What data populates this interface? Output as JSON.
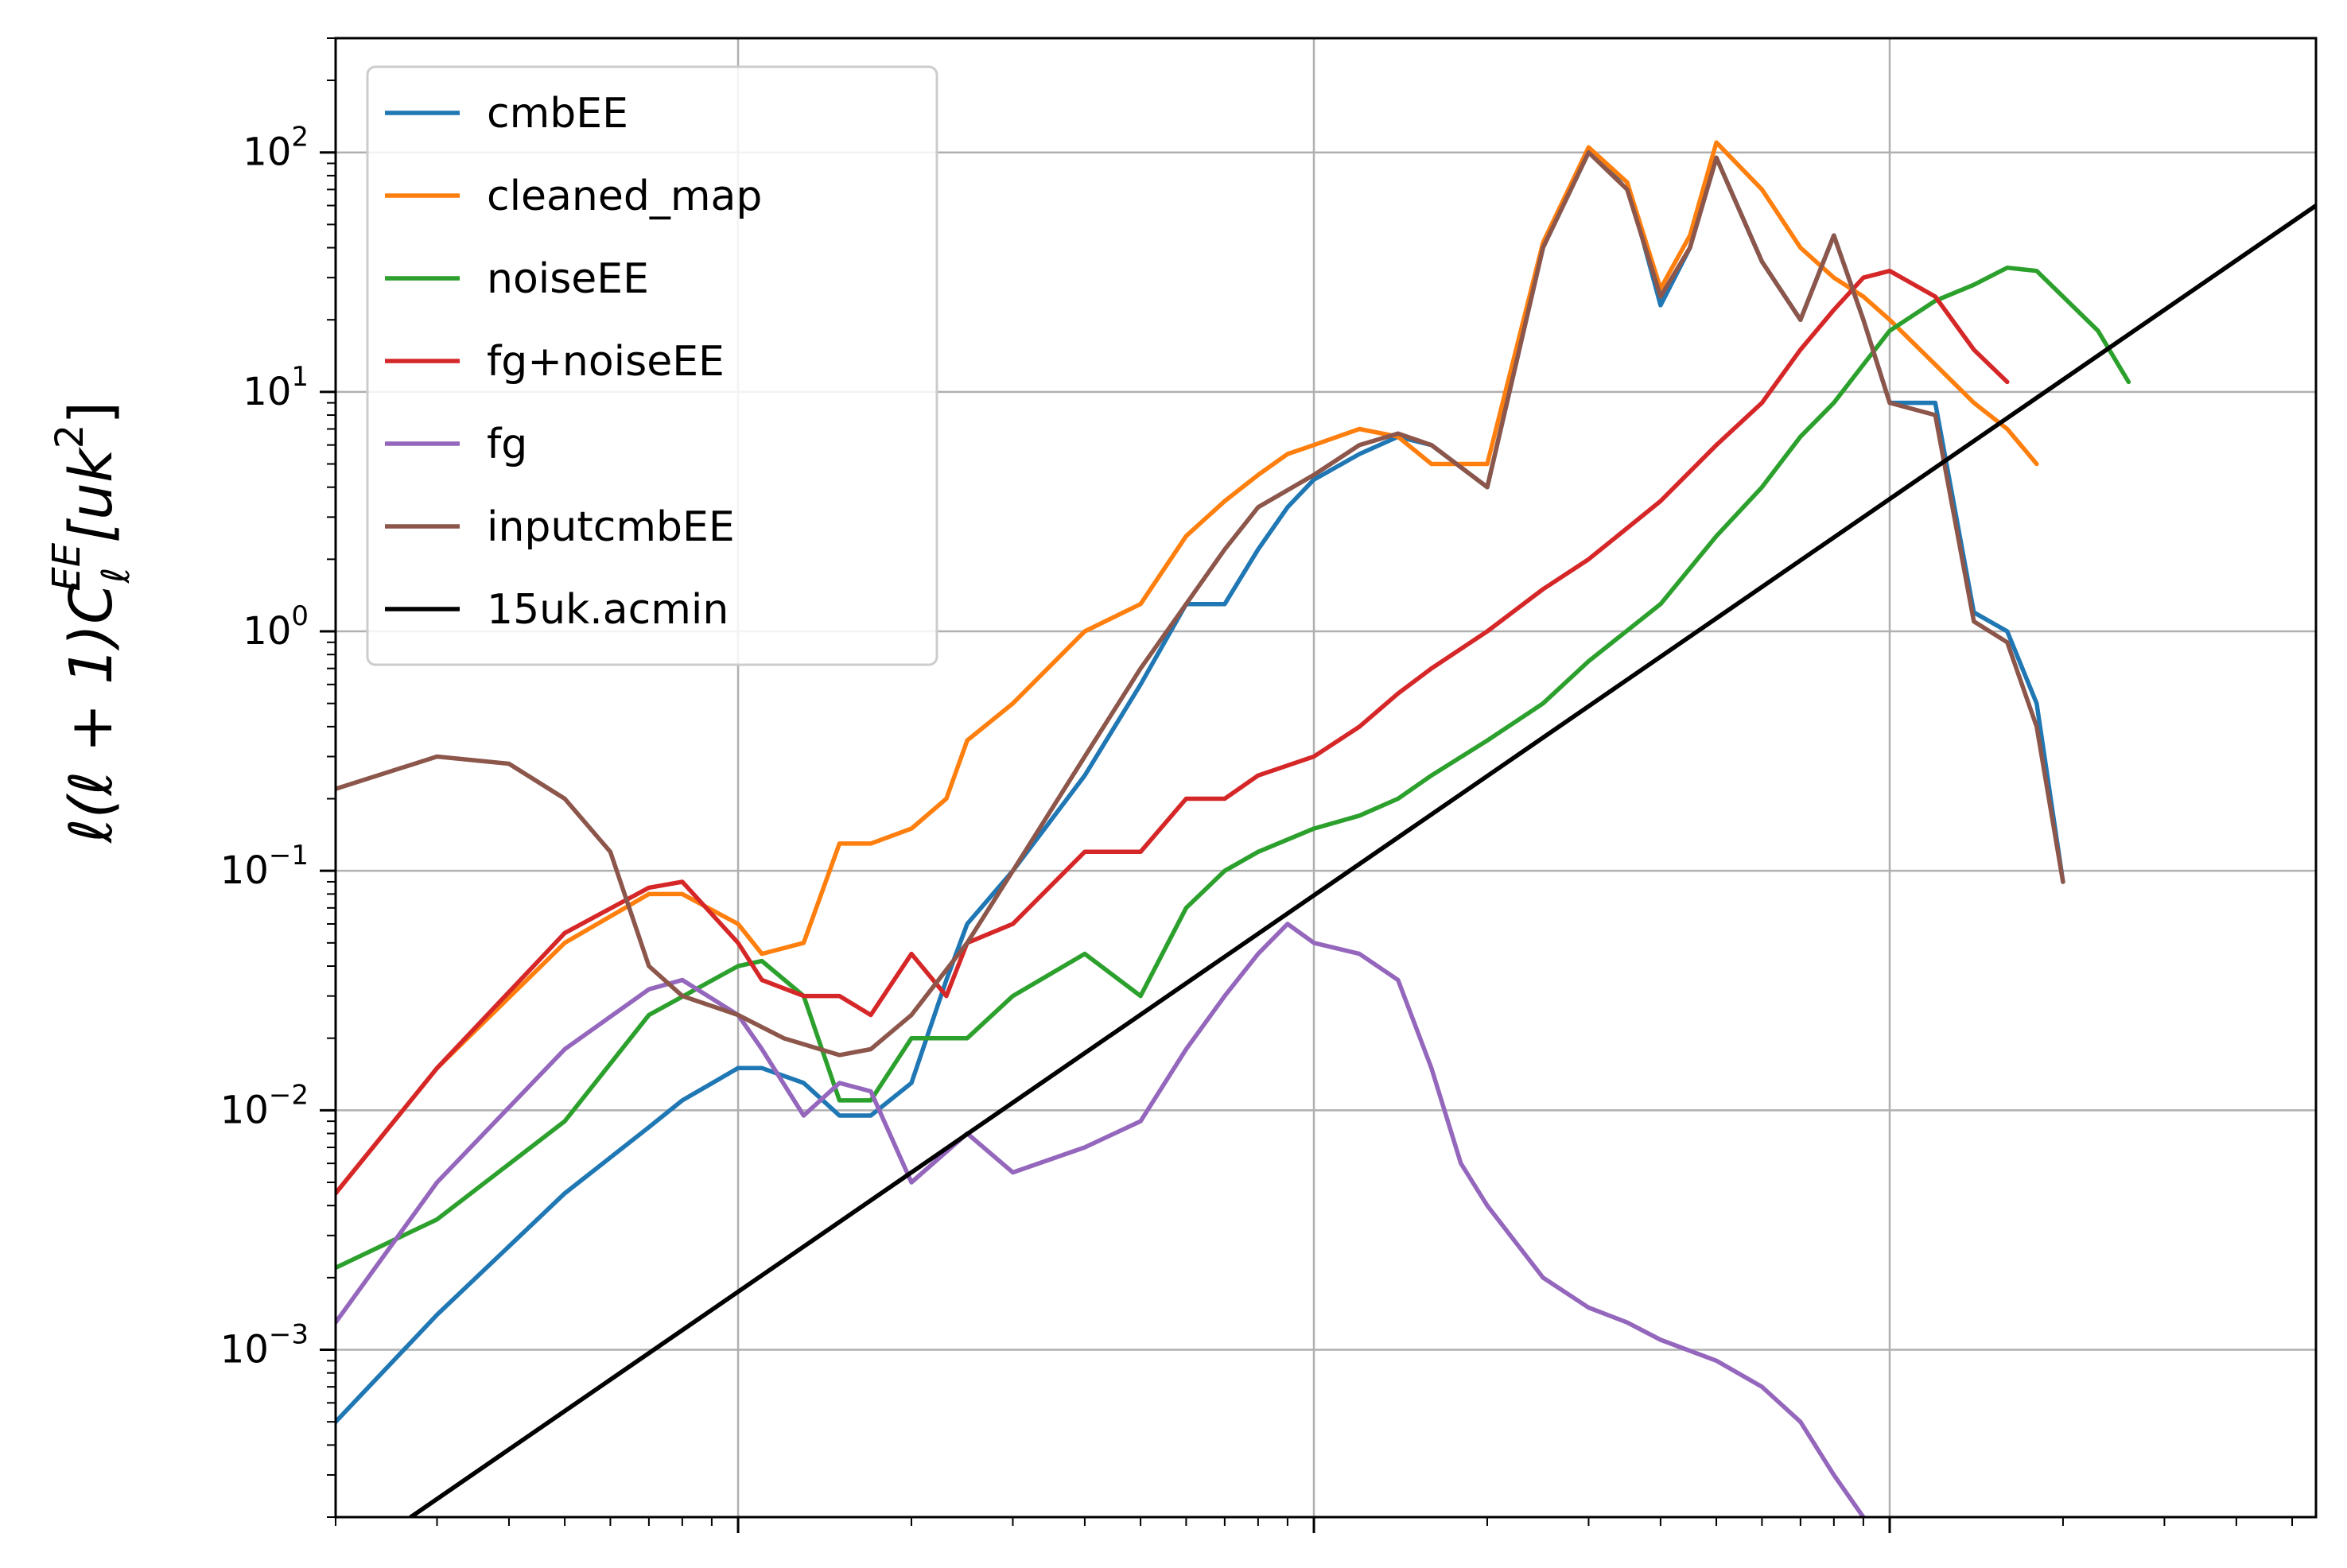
{
  "chart_data": {
    "type": "line",
    "title": "",
    "xlabel": "",
    "ylabel": "ℓ(ℓ+1)C_ℓ^EE[uk^2]",
    "ylabel_parts": {
      "main": "ℓ(ℓ + 1)C",
      "sub": "ℓ",
      "sup": "EE",
      "unit": "[uk",
      "unit_sup": "2",
      "close": "]"
    },
    "xscale": "log",
    "yscale": "log",
    "xlim": [
      2,
      5500
    ],
    "ylim": [
      0.0002,
      300
    ],
    "grid": true,
    "legend_position": "top-left",
    "x_ticklabels": [],
    "y_ticks": [
      {
        "value": 0.001,
        "base": "10",
        "exp": "−3"
      },
      {
        "value": 0.01,
        "base": "10",
        "exp": "−2"
      },
      {
        "value": 0.1,
        "base": "10",
        "exp": "−1"
      },
      {
        "value": 1,
        "base": "10",
        "exp": "0"
      },
      {
        "value": 10,
        "base": "10",
        "exp": "1"
      },
      {
        "value": 100,
        "base": "10",
        "exp": "2"
      }
    ],
    "series": [
      {
        "name": "cmbEE",
        "color": "#1f77b4",
        "x": [
          2,
          3,
          5,
          7,
          8,
          10,
          11,
          13,
          15,
          17,
          20,
          23,
          25,
          30,
          40,
          50,
          60,
          70,
          80,
          90,
          100,
          120,
          140,
          160,
          200,
          250,
          300,
          350,
          400,
          450,
          500,
          600,
          700,
          800,
          900,
          1000,
          1200,
          1400,
          1600,
          1800,
          2000,
          2300,
          2600,
          3000,
          3400,
          3700,
          4000,
          4300,
          4600,
          5000,
          5500
        ],
        "y": [
          0.0005,
          0.0014,
          0.0045,
          0.0085,
          0.011,
          0.015,
          0.015,
          0.013,
          0.0095,
          0.0095,
          0.013,
          0.035,
          0.06,
          0.1,
          0.25,
          0.6,
          1.3,
          1.3,
          2.2,
          3.3,
          4.3,
          5.5,
          6.5,
          6.0,
          4.0,
          40,
          100,
          75,
          23,
          40,
          95,
          35,
          20,
          45,
          20,
          9,
          9,
          1.2,
          1.0,
          0.5,
          0.09,
          null,
          null,
          null,
          null,
          null,
          null,
          null,
          null,
          null,
          null
        ]
      },
      {
        "name": "cleaned_map",
        "color": "#ff7f0e",
        "x": [
          2,
          3,
          5,
          7,
          8,
          10,
          11,
          13,
          15,
          17,
          20,
          23,
          25,
          30,
          40,
          50,
          60,
          70,
          80,
          90,
          100,
          120,
          140,
          160,
          200,
          250,
          300,
          350,
          400,
          450,
          500,
          600,
          700,
          800,
          900,
          1000,
          1200,
          1400,
          1600,
          1800,
          2000,
          2300,
          2600,
          3000,
          3400,
          3700,
          4000,
          4300,
          4600,
          5000,
          5500
        ],
        "y": [
          0.0045,
          0.015,
          0.05,
          0.08,
          0.08,
          0.06,
          0.045,
          0.05,
          0.13,
          0.13,
          0.15,
          0.2,
          0.35,
          0.5,
          1.0,
          1.3,
          2.5,
          3.5,
          4.5,
          5.5,
          6.0,
          7.0,
          6.5,
          5.0,
          5.0,
          42,
          105,
          75,
          27,
          45,
          110,
          70,
          40,
          30,
          25,
          20,
          13,
          9,
          7,
          5,
          null,
          null,
          null,
          null,
          null,
          null,
          null,
          null,
          null,
          null,
          null
        ]
      },
      {
        "name": "noiseEE",
        "color": "#2ca02c",
        "x": [
          2,
          3,
          5,
          7,
          10,
          11,
          13,
          15,
          17,
          20,
          25,
          30,
          40,
          50,
          60,
          70,
          80,
          100,
          120,
          140,
          160,
          200,
          250,
          300,
          400,
          500,
          600,
          700,
          800,
          900,
          1000,
          1200,
          1400,
          1600,
          1800,
          2000,
          2300,
          2600,
          3000,
          3400,
          3700,
          4000,
          4300,
          4600,
          5000,
          5500
        ],
        "y": [
          0.0022,
          0.0035,
          0.009,
          0.025,
          0.04,
          0.042,
          0.03,
          0.011,
          0.011,
          0.02,
          0.02,
          0.03,
          0.045,
          0.03,
          0.07,
          0.1,
          0.12,
          0.15,
          0.17,
          0.2,
          0.25,
          0.35,
          0.5,
          0.75,
          1.3,
          2.5,
          4.0,
          6.5,
          9,
          13,
          18,
          24,
          28,
          33,
          32,
          25,
          18,
          11,
          null,
          null,
          null,
          null,
          null,
          null,
          null,
          null
        ]
      },
      {
        "name": "fg+noiseEE",
        "color": "#d62728",
        "x": [
          2,
          3,
          5,
          7,
          8,
          10,
          11,
          13,
          15,
          17,
          20,
          23,
          25,
          30,
          40,
          50,
          60,
          70,
          80,
          100,
          120,
          140,
          160,
          200,
          250,
          300,
          400,
          500,
          600,
          700,
          800,
          900,
          1000,
          1200,
          1400,
          1600,
          1800,
          2000
        ],
        "y": [
          0.0045,
          0.015,
          0.055,
          0.085,
          0.09,
          0.05,
          0.035,
          0.03,
          0.03,
          0.025,
          0.045,
          0.03,
          0.05,
          0.06,
          0.12,
          0.12,
          0.2,
          0.2,
          0.25,
          0.3,
          0.4,
          0.55,
          0.7,
          1.0,
          1.5,
          2.0,
          3.5,
          6.0,
          9,
          15,
          22,
          30,
          32,
          25,
          15,
          11,
          null,
          null
        ]
      },
      {
        "name": "fg",
        "color": "#9467bd",
        "x": [
          2,
          3,
          5,
          7,
          8,
          10,
          11,
          13,
          15,
          17,
          20,
          25,
          30,
          40,
          50,
          60,
          70,
          80,
          90,
          100,
          120,
          140,
          160,
          180,
          200,
          250,
          300,
          350,
          400,
          500,
          600,
          700,
          800,
          900,
          1000,
          1100,
          1200
        ],
        "y": [
          0.0013,
          0.005,
          0.018,
          0.032,
          0.035,
          0.025,
          0.018,
          0.0095,
          0.013,
          0.012,
          0.005,
          0.008,
          0.0055,
          0.007,
          0.009,
          0.018,
          0.03,
          0.045,
          0.06,
          0.05,
          0.045,
          0.035,
          0.015,
          0.006,
          0.004,
          0.002,
          0.0015,
          0.0013,
          0.0011,
          0.0009,
          0.0007,
          0.0005,
          0.0003,
          0.0002,
          null,
          null,
          null
        ]
      },
      {
        "name": "inputcmbEE",
        "color": "#8c564b",
        "x": [
          2,
          3,
          4,
          5,
          6,
          7,
          8,
          10,
          12,
          15,
          17,
          20,
          25,
          30,
          40,
          50,
          60,
          70,
          80,
          100,
          120,
          140,
          160,
          200,
          250,
          300,
          350,
          400,
          450,
          500,
          600,
          700,
          800,
          900,
          1000,
          1200,
          1400,
          1600,
          1800,
          2000
        ],
        "y": [
          0.22,
          0.3,
          0.28,
          0.2,
          0.12,
          0.04,
          0.03,
          0.025,
          0.02,
          0.017,
          0.018,
          0.025,
          0.05,
          0.1,
          0.3,
          0.7,
          1.3,
          2.2,
          3.3,
          4.5,
          6.0,
          6.7,
          6.0,
          4.0,
          40,
          100,
          70,
          25,
          40,
          95,
          35,
          20,
          45,
          20,
          9,
          8,
          1.1,
          0.9,
          0.4,
          0.09
        ]
      },
      {
        "name": "15uk.acmin",
        "color": "#000000",
        "x": [
          2.7,
          5500
        ],
        "y": [
          0.0002,
          60
        ]
      }
    ]
  }
}
